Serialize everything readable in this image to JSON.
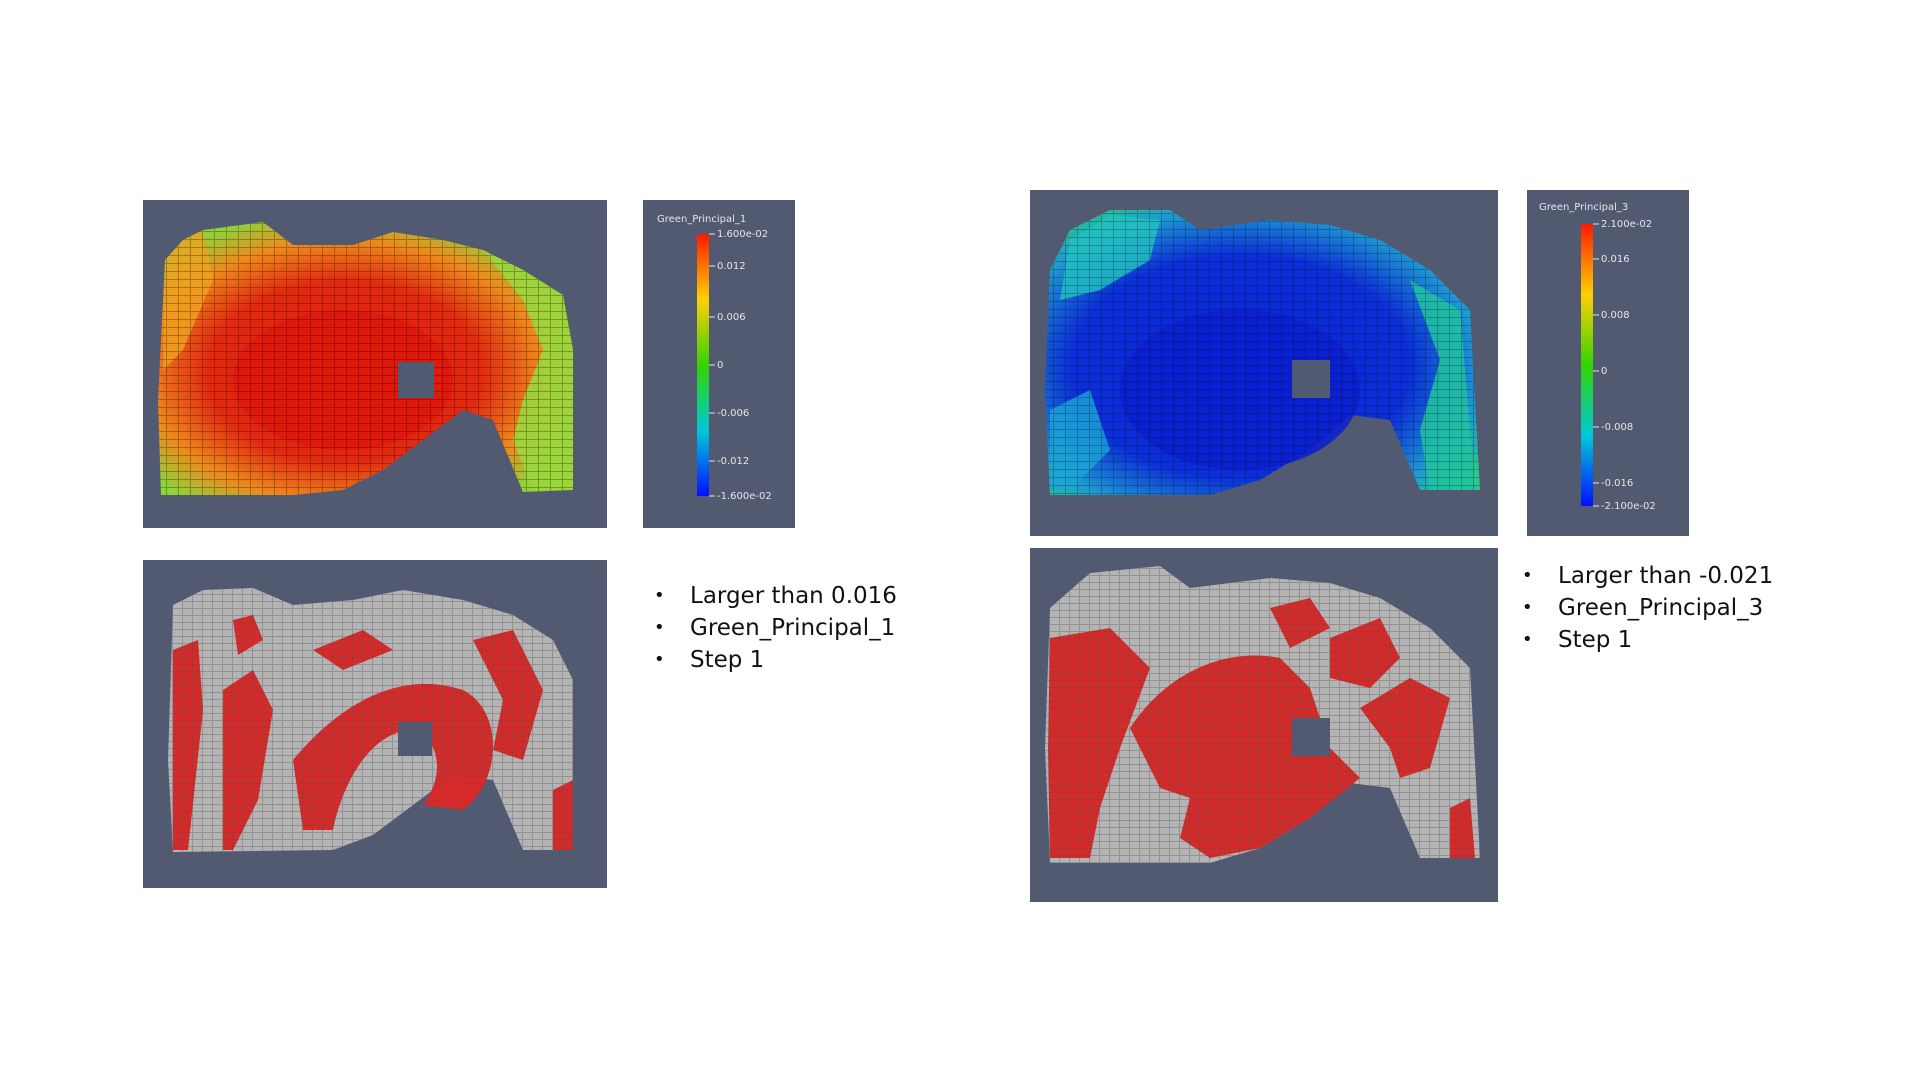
{
  "left": {
    "colorbar": {
      "title": "Green_Principal_1",
      "ticks": [
        "1.600e-02",
        "0.012",
        "0.006",
        "0",
        "-0.006",
        "-0.012",
        "-1.600e-02"
      ]
    },
    "notes": [
      "Larger than 0.016",
      "Green_Principal_1",
      "Step 1"
    ]
  },
  "right": {
    "colorbar": {
      "title": "Green_Principal_3",
      "ticks": [
        "2.100e-02",
        "0.016",
        "0.008",
        "0",
        "-0.008",
        "-0.016",
        "-2.100e-02"
      ]
    },
    "notes": [
      "Larger than -0.021",
      "Green_Principal_3",
      "Step 1"
    ]
  },
  "colors": {
    "viewport_bg": "#525a72",
    "mesh_gray": "#b4b4b4",
    "highlight_red": "#d42a2a",
    "strain_red": "#e8230f",
    "strain_green": "#7ccf2a",
    "strain_blue": "#0a2bd6",
    "strain_cyan": "#1fb6c9"
  }
}
